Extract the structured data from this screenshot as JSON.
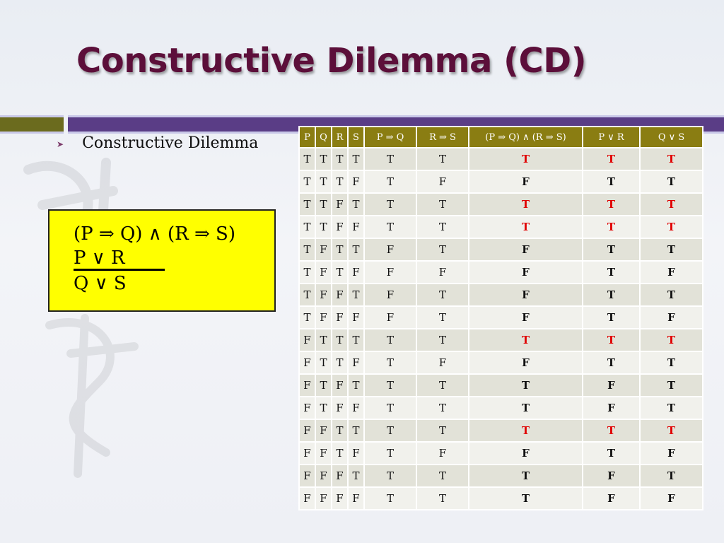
{
  "slide": {
    "title": "Constructive Dilemma (CD)",
    "bullet": "Constructive Dilemma",
    "argument": {
      "line1": "(P ⇒ Q) ∧ (R ⇒ S)",
      "line2": "P ∨ R",
      "line3": "Q ∨ S"
    },
    "colors": {
      "title": "#5c0f3a",
      "header_bg": "#8a7d12",
      "highlight_rows_text": "#e00000",
      "box_bg": "#ffff00"
    }
  },
  "table": {
    "headers": [
      "P",
      "Q",
      "R",
      "S",
      "P ⇒ Q",
      "R ⇒ S",
      "(P ⇒ Q) ∧ (R ⇒ S)",
      "P ∨ R",
      "Q ∨ S"
    ],
    "rows": [
      {
        "cells": [
          "T",
          "T",
          "T",
          "T",
          "T",
          "T",
          "T",
          "T",
          "T"
        ],
        "highlight": true
      },
      {
        "cells": [
          "T",
          "T",
          "T",
          "F",
          "T",
          "F",
          "F",
          "T",
          "T"
        ],
        "highlight": false
      },
      {
        "cells": [
          "T",
          "T",
          "F",
          "T",
          "T",
          "T",
          "T",
          "T",
          "T"
        ],
        "highlight": true
      },
      {
        "cells": [
          "T",
          "T",
          "F",
          "F",
          "T",
          "T",
          "T",
          "T",
          "T"
        ],
        "highlight": true
      },
      {
        "cells": [
          "T",
          "F",
          "T",
          "T",
          "F",
          "T",
          "F",
          "T",
          "T"
        ],
        "highlight": false
      },
      {
        "cells": [
          "T",
          "F",
          "T",
          "F",
          "F",
          "F",
          "F",
          "T",
          "F"
        ],
        "highlight": false
      },
      {
        "cells": [
          "T",
          "F",
          "F",
          "T",
          "F",
          "T",
          "F",
          "T",
          "T"
        ],
        "highlight": false
      },
      {
        "cells": [
          "T",
          "F",
          "F",
          "F",
          "F",
          "T",
          "F",
          "T",
          "F"
        ],
        "highlight": false
      },
      {
        "cells": [
          "F",
          "T",
          "T",
          "T",
          "T",
          "T",
          "T",
          "T",
          "T"
        ],
        "highlight": true
      },
      {
        "cells": [
          "F",
          "T",
          "T",
          "F",
          "T",
          "F",
          "F",
          "T",
          "T"
        ],
        "highlight": false
      },
      {
        "cells": [
          "F",
          "T",
          "F",
          "T",
          "T",
          "T",
          "T",
          "F",
          "T"
        ],
        "highlight": false
      },
      {
        "cells": [
          "F",
          "T",
          "F",
          "F",
          "T",
          "T",
          "T",
          "F",
          "T"
        ],
        "highlight": false
      },
      {
        "cells": [
          "F",
          "F",
          "T",
          "T",
          "T",
          "T",
          "T",
          "T",
          "T"
        ],
        "highlight": true
      },
      {
        "cells": [
          "F",
          "F",
          "T",
          "F",
          "T",
          "F",
          "F",
          "T",
          "F"
        ],
        "highlight": false
      },
      {
        "cells": [
          "F",
          "F",
          "F",
          "T",
          "T",
          "T",
          "T",
          "F",
          "T"
        ],
        "highlight": false
      },
      {
        "cells": [
          "F",
          "F",
          "F",
          "F",
          "T",
          "T",
          "T",
          "F",
          "F"
        ],
        "highlight": false
      }
    ]
  }
}
